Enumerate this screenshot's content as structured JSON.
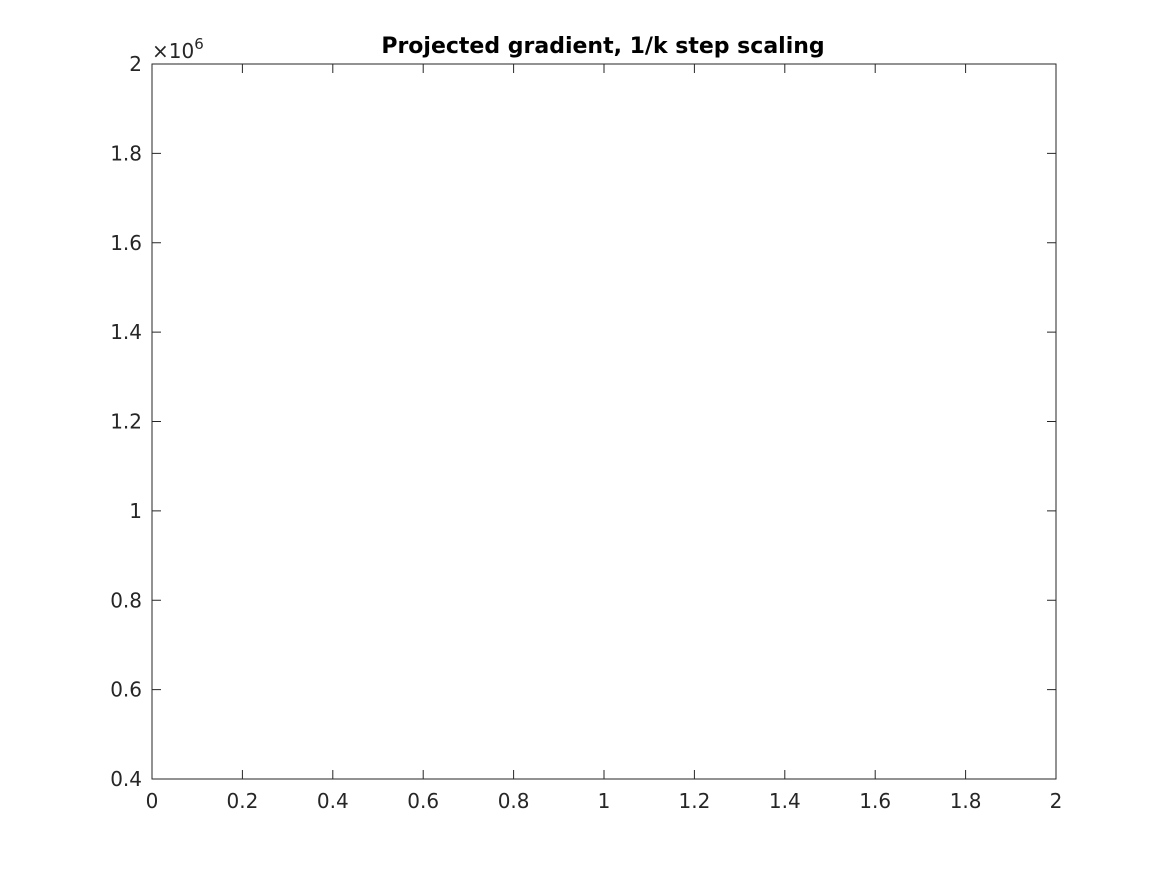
{
  "chart_data": {
    "type": "line",
    "title": "Projected gradient, 1/k step scaling",
    "xlabel": "",
    "ylabel": "",
    "xlim": [
      0,
      2
    ],
    "ylim": [
      0.4,
      2
    ],
    "y_multiplier": {
      "prefix": "×10",
      "exponent": "6"
    },
    "x_ticks": [
      0,
      0.2,
      0.4,
      0.6,
      0.8,
      1,
      1.2,
      1.4,
      1.6,
      1.8,
      2
    ],
    "x_tick_labels": [
      "0",
      "0.2",
      "0.4",
      "0.6",
      "0.8",
      "1",
      "1.2",
      "1.4",
      "1.6",
      "1.8",
      "2"
    ],
    "y_ticks": [
      0.4,
      0.6,
      0.8,
      1,
      1.2,
      1.4,
      1.6,
      1.8,
      2
    ],
    "y_tick_labels": [
      "0.4",
      "0.6",
      "0.8",
      "1",
      "1.2",
      "1.4",
      "1.6",
      "1.8",
      "2"
    ],
    "series": [],
    "grid": false,
    "box": true,
    "colors": {
      "axis": "#262626",
      "title": "#000000",
      "background": "#ffffff"
    }
  }
}
